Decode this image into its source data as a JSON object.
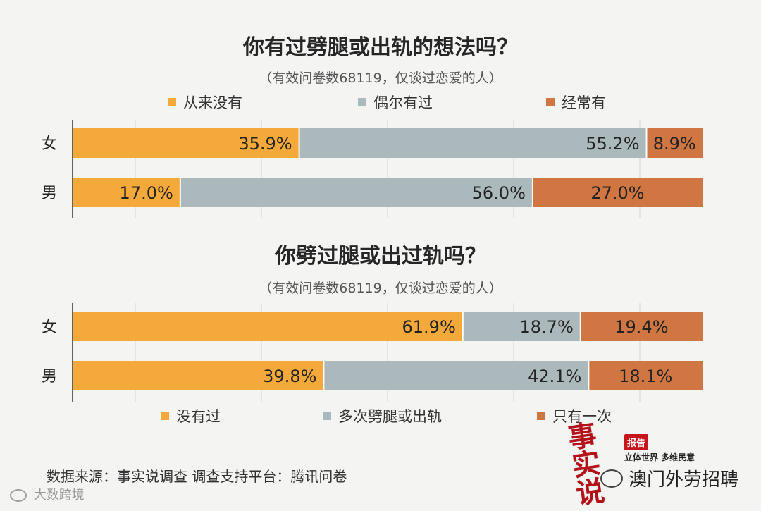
{
  "colors": {
    "orange": "#f5a93a",
    "gray": "#abb9bc",
    "rust": "#d07643",
    "grid": "#d3d3d3",
    "axis": "#333333"
  },
  "chart_data": [
    {
      "type": "bar",
      "orientation": "horizontal",
      "stacked": true,
      "title": "你有过劈腿或出轨的想法吗？",
      "subtitle": "（有效问卷数68119，仅谈过恋爱的人）",
      "legend_position": "top",
      "categories": [
        "女",
        "男"
      ],
      "series": [
        {
          "name": "从来没有",
          "color": "#f5a93a",
          "values": [
            35.9,
            17.0
          ],
          "labels": [
            "35.9%",
            "17.0%"
          ]
        },
        {
          "name": "偶尔有过",
          "color": "#abb9bc",
          "values": [
            55.2,
            56.0
          ],
          "labels": [
            "55.2%",
            "56.0%"
          ]
        },
        {
          "name": "经常有",
          "color": "#d07643",
          "values": [
            8.9,
            27.0
          ],
          "labels": [
            "8.9%",
            "27.0%"
          ]
        }
      ],
      "xlim": [
        0,
        100
      ],
      "grid": true
    },
    {
      "type": "bar",
      "orientation": "horizontal",
      "stacked": true,
      "title": "你劈过腿或出过轨吗？",
      "subtitle": "（有效问卷数68119，仅谈过恋爱的人）",
      "legend_position": "bottom",
      "categories": [
        "女",
        "男"
      ],
      "series": [
        {
          "name": "没有过",
          "color": "#f5a93a",
          "values": [
            61.9,
            39.8
          ],
          "labels": [
            "61.9%",
            "39.8%"
          ]
        },
        {
          "name": "多次劈腿或出轨",
          "color": "#abb9bc",
          "values": [
            18.7,
            42.1
          ],
          "labels": [
            "18.7%",
            "42.1%"
          ]
        },
        {
          "name": "只有一次",
          "color": "#d07643",
          "values": [
            19.4,
            18.1
          ],
          "labels": [
            "19.4%",
            "18.1%"
          ]
        }
      ],
      "xlim": [
        0,
        100
      ],
      "grid": true
    }
  ],
  "footer": {
    "source": "数据来源：事实说调查   调查支持平台：腾讯问卷",
    "logo_left": "大数跨境",
    "stamp_text": "事实说",
    "badge": "报告",
    "tagline": "立体世界 多维民意",
    "wechat": "澳门外劳招聘"
  }
}
